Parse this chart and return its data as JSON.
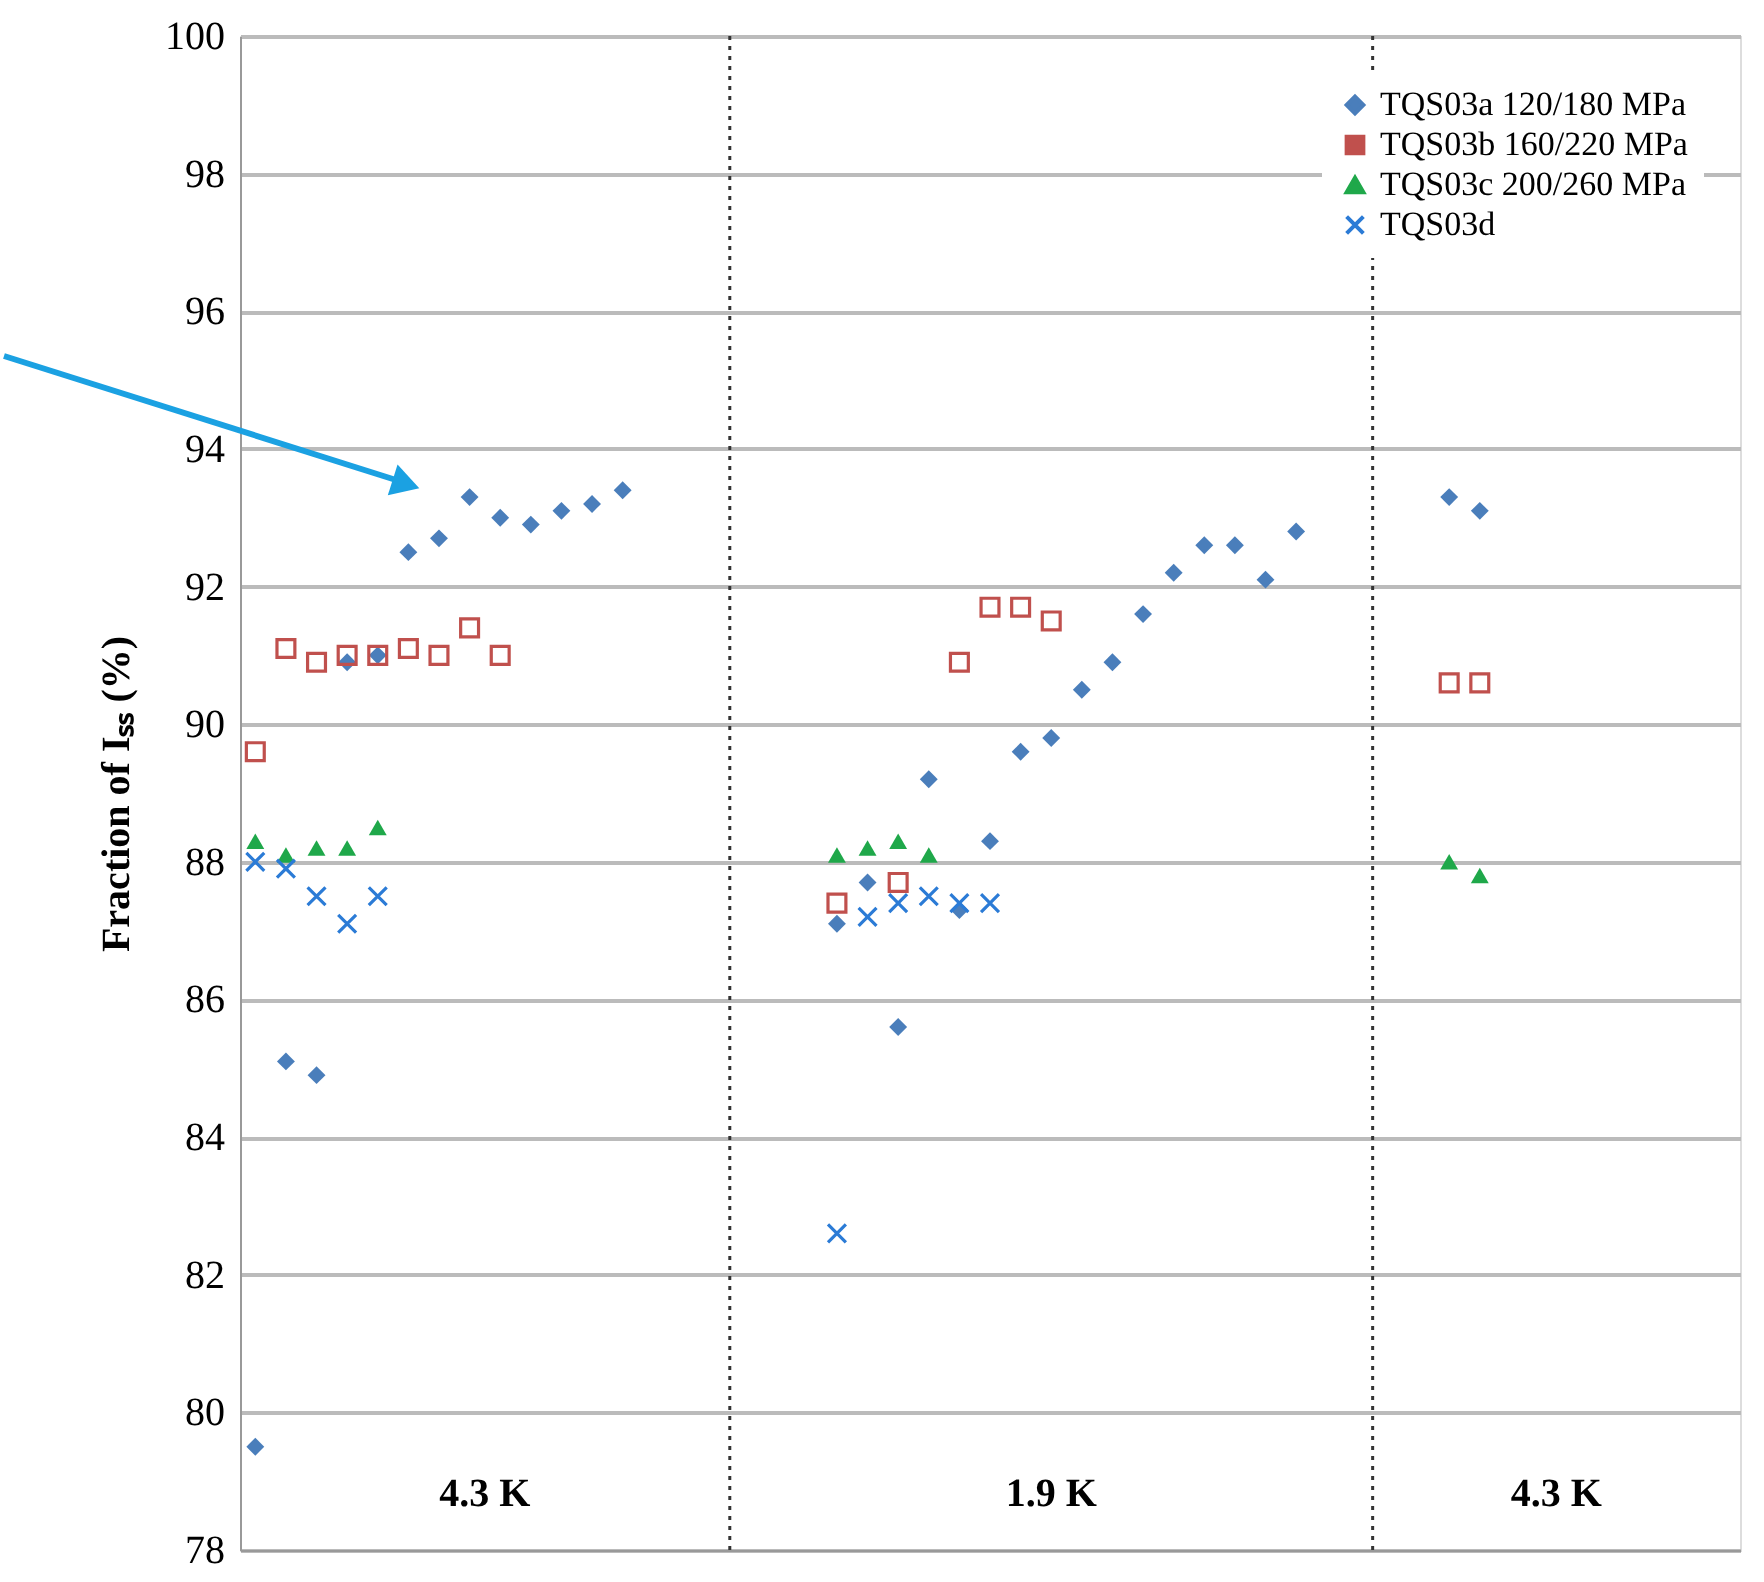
{
  "chart_data": {
    "type": "scatter",
    "ylabel": "Fraction of Iₛₛ (%)",
    "categories": [
      null,
      null,
      null,
      null,
      null,
      null,
      null,
      null,
      null,
      null,
      null,
      null,
      null,
      null,
      null,
      null,
      null,
      null,
      null,
      null,
      null,
      null,
      null,
      null,
      null,
      null,
      null,
      null,
      null,
      null,
      null,
      null,
      null,
      null,
      null,
      null,
      null,
      null,
      null,
      null,
      null,
      null,
      null,
      null,
      null,
      null,
      null,
      null,
      null
    ],
    "ylim": [
      78,
      100
    ],
    "yticks": [
      78,
      80,
      82,
      84,
      86,
      88,
      90,
      92,
      94,
      96,
      98,
      100
    ],
    "grid": "y",
    "legend": "top right",
    "series": [
      {
        "name": "TQS03a 120/180 MPa",
        "color": "#4a7ebb",
        "marker": "diamond",
        "values": [
          79.5,
          85.1,
          84.9,
          90.9,
          91.0,
          92.5,
          92.7,
          93.3,
          93.0,
          92.9,
          93.1,
          93.2,
          93.4,
          null,
          null,
          null,
          null,
          null,
          null,
          87.1,
          87.7,
          85.6,
          89.2,
          87.3,
          88.3,
          89.6,
          89.8,
          90.5,
          90.9,
          91.6,
          92.2,
          92.6,
          92.6,
          92.1,
          92.8,
          null,
          null,
          null,
          null,
          93.3,
          93.1,
          null,
          null,
          null,
          null,
          null,
          null,
          null,
          null
        ]
      },
      {
        "name": "TQS03b 160/220 MPa",
        "color": "#c0504d",
        "marker": "square",
        "values": [
          89.6,
          91.1,
          90.9,
          91.0,
          91.0,
          91.1,
          91.0,
          91.4,
          91.0,
          null,
          null,
          null,
          null,
          null,
          null,
          null,
          null,
          null,
          null,
          87.4,
          null,
          87.7,
          null,
          90.9,
          91.7,
          91.7,
          91.5,
          null,
          null,
          null,
          null,
          null,
          null,
          null,
          null,
          null,
          null,
          null,
          null,
          90.6,
          90.6,
          null,
          null,
          null,
          null,
          null,
          null,
          null,
          null
        ]
      },
      {
        "name": "TQS03c 200/260 MPa",
        "color": "#1fa84a",
        "marker": "triangle",
        "values": [
          88.3,
          88.1,
          88.2,
          88.2,
          88.5,
          null,
          null,
          null,
          null,
          null,
          null,
          null,
          null,
          null,
          null,
          null,
          null,
          null,
          null,
          88.1,
          88.2,
          88.3,
          88.1,
          null,
          null,
          null,
          null,
          null,
          null,
          null,
          null,
          null,
          null,
          null,
          null,
          null,
          null,
          null,
          null,
          88.0,
          87.8,
          null,
          null,
          null,
          null,
          null,
          null,
          null,
          null
        ]
      },
      {
        "name": "TQS03d",
        "color": "#2b7bd6",
        "marker": "cross",
        "values": [
          88.0,
          87.9,
          87.5,
          87.1,
          87.5,
          null,
          null,
          null,
          null,
          null,
          null,
          null,
          null,
          null,
          null,
          null,
          null,
          null,
          null,
          82.6,
          87.2,
          87.4,
          87.5,
          87.4,
          87.4,
          null,
          null,
          null,
          null,
          null,
          null,
          null,
          null,
          null,
          null,
          null,
          null,
          null,
          null,
          null,
          null,
          null,
          null,
          null,
          null,
          null,
          null,
          null,
          null
        ]
      }
    ],
    "annotations": [
      "4.3 K",
      "1.9 K",
      "4.3 K"
    ]
  }
}
